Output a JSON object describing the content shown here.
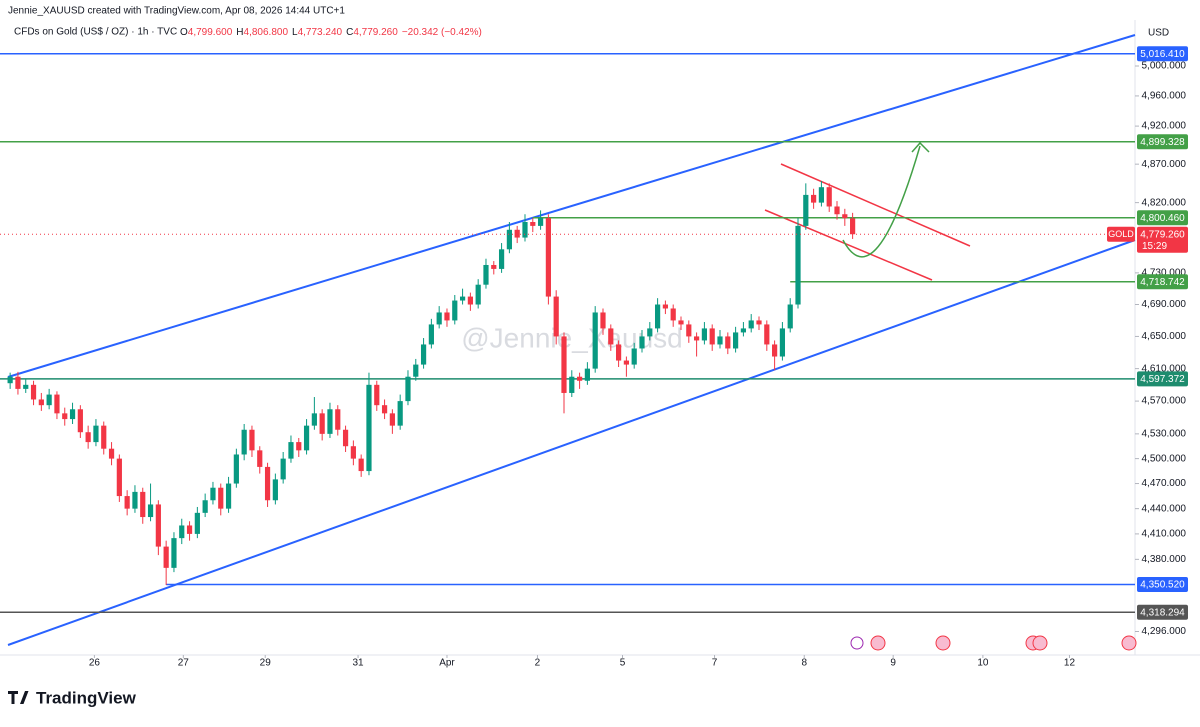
{
  "chart_data": {
    "type": "candlestick",
    "header": "Jennie_XAUUSD created with TradingView.com, Apr 08, 2026 14:44 UTC+1",
    "title": "CFDs on Gold (US$ / OZ) · 1h · TVC",
    "ohlc_legend": [
      {
        "label": "O",
        "text": "4,799.600"
      },
      {
        "label": "H",
        "text": "4,806.800"
      },
      {
        "label": "L",
        "text": "4,773.240"
      },
      {
        "label": "C",
        "text": "4,779.260"
      }
    ],
    "change": "−20.342 (−0.42%)",
    "y_unit": "USD",
    "watermark": "@Jennie_Xauusd",
    "brand": "TradingView",
    "symbol": "GOLD",
    "countdown": "15:29",
    "log_scale": true,
    "grid": false,
    "up_color": "#089981",
    "down_color": "#f23645",
    "ylim": [
      4269,
      5035
    ],
    "yticks": [
      {
        "value": 5000,
        "label": "5,000.000"
      },
      {
        "value": 4960,
        "label": "4,960.000"
      },
      {
        "value": 4920,
        "label": "4,920.000"
      },
      {
        "value": 4870,
        "label": "4,870.000"
      },
      {
        "value": 4820,
        "label": "4,820.000"
      },
      {
        "value": 4730,
        "label": "4,730.000"
      },
      {
        "value": 4690,
        "label": "4,690.000"
      },
      {
        "value": 4650,
        "label": "4,650.000"
      },
      {
        "value": 4610,
        "label": "4,610.000"
      },
      {
        "value": 4570,
        "label": "4,570.000"
      },
      {
        "value": 4530,
        "label": "4,530.000"
      },
      {
        "value": 4500,
        "label": "4,500.000"
      },
      {
        "value": 4470,
        "label": "4,470.000"
      },
      {
        "value": 4440,
        "label": "4,440.000"
      },
      {
        "value": 4410,
        "label": "4,410.000"
      },
      {
        "value": 4380,
        "label": "4,380.000"
      },
      {
        "value": 4296,
        "label": "4,296.000"
      }
    ],
    "xlim": [
      -1.3,
      144.2
    ],
    "xticks": [
      {
        "value": 10.8,
        "label": "26"
      },
      {
        "value": 22.2,
        "label": "27"
      },
      {
        "value": 32.7,
        "label": "29"
      },
      {
        "value": 44.6,
        "label": "31"
      },
      {
        "value": 56,
        "label": "Apr"
      },
      {
        "value": 67.6,
        "label": "2"
      },
      {
        "value": 78.5,
        "label": "5"
      },
      {
        "value": 90.3,
        "label": "7"
      },
      {
        "value": 101.8,
        "label": "8"
      },
      {
        "value": 113.2,
        "label": "9"
      },
      {
        "value": 124.7,
        "label": "10"
      },
      {
        "value": 135.8,
        "label": "12"
      }
    ],
    "levels": [
      {
        "value": 5016.41,
        "label": "5,016.410",
        "color": "#2962ff",
        "from": -1.3
      },
      {
        "value": 4899.328,
        "label": "4,899.328",
        "color": "#43a047",
        "from": -1.3
      },
      {
        "value": 4800.46,
        "label": "4,800.460",
        "color": "#43a047",
        "from": 67
      },
      {
        "value": 4718.742,
        "label": "4,718.742",
        "color": "#43a047",
        "from": 100
      },
      {
        "value": 4597.372,
        "label": "4,597.372",
        "color": "#1e8c6e",
        "from": -1.3
      },
      {
        "value": 4350.52,
        "label": "4,350.520",
        "color": "#2962ff",
        "from": 20
      },
      {
        "value": 4318.294,
        "label": "4,318.294",
        "color": "#555555",
        "from": -1.3
      }
    ],
    "last_price": {
      "value": 4779.26,
      "label": "4,779.260"
    },
    "ohlc": [
      [
        4592,
        4605,
        4585,
        4600
      ],
      [
        4600,
        4606,
        4578,
        4585
      ],
      [
        4585,
        4597,
        4580,
        4590
      ],
      [
        4590,
        4595,
        4565,
        4572
      ],
      [
        4572,
        4580,
        4558,
        4565
      ],
      [
        4565,
        4585,
        4560,
        4578
      ],
      [
        4578,
        4582,
        4548,
        4555
      ],
      [
        4555,
        4562,
        4540,
        4548
      ],
      [
        4548,
        4568,
        4542,
        4560
      ],
      [
        4560,
        4565,
        4525,
        4532
      ],
      [
        4532,
        4540,
        4512,
        4520
      ],
      [
        4520,
        4548,
        4515,
        4540
      ],
      [
        4540,
        4545,
        4505,
        4512
      ],
      [
        4512,
        4520,
        4492,
        4500
      ],
      [
        4500,
        4505,
        4448,
        4455
      ],
      [
        4455,
        4462,
        4432,
        4440
      ],
      [
        4440,
        4468,
        4435,
        4460
      ],
      [
        4460,
        4465,
        4422,
        4430
      ],
      [
        4430,
        4470,
        4425,
        4445
      ],
      [
        4445,
        4450,
        4385,
        4395
      ],
      [
        4395,
        4402,
        4350,
        4370
      ],
      [
        4370,
        4412,
        4365,
        4405
      ],
      [
        4405,
        4428,
        4398,
        4420
      ],
      [
        4420,
        4425,
        4402,
        4410
      ],
      [
        4410,
        4442,
        4405,
        4435
      ],
      [
        4435,
        4458,
        4430,
        4450
      ],
      [
        4450,
        4472,
        4445,
        4465
      ],
      [
        4465,
        4470,
        4432,
        4440
      ],
      [
        4440,
        4478,
        4435,
        4470
      ],
      [
        4470,
        4512,
        4465,
        4505
      ],
      [
        4505,
        4542,
        4498,
        4535
      ],
      [
        4535,
        4540,
        4502,
        4510
      ],
      [
        4510,
        4515,
        4482,
        4490
      ],
      [
        4490,
        4495,
        4442,
        4450
      ],
      [
        4450,
        4482,
        4445,
        4475
      ],
      [
        4475,
        4508,
        4470,
        4500
      ],
      [
        4500,
        4528,
        4495,
        4520
      ],
      [
        4520,
        4525,
        4502,
        4510
      ],
      [
        4510,
        4548,
        4505,
        4540
      ],
      [
        4540,
        4575,
        4535,
        4555
      ],
      [
        4555,
        4560,
        4522,
        4530
      ],
      [
        4530,
        4568,
        4525,
        4560
      ],
      [
        4560,
        4565,
        4528,
        4535
      ],
      [
        4535,
        4540,
        4508,
        4515
      ],
      [
        4515,
        4522,
        4492,
        4500
      ],
      [
        4500,
        4505,
        4478,
        4485
      ],
      [
        4485,
        4605,
        4480,
        4590
      ],
      [
        4590,
        4595,
        4558,
        4565
      ],
      [
        4565,
        4572,
        4548,
        4555
      ],
      [
        4555,
        4560,
        4530,
        4540
      ],
      [
        4540,
        4578,
        4535,
        4570
      ],
      [
        4570,
        4608,
        4565,
        4600
      ],
      [
        4600,
        4622,
        4595,
        4615
      ],
      [
        4615,
        4648,
        4610,
        4640
      ],
      [
        4640,
        4672,
        4635,
        4665
      ],
      [
        4665,
        4688,
        4660,
        4680
      ],
      [
        4680,
        4685,
        4662,
        4670
      ],
      [
        4670,
        4702,
        4665,
        4695
      ],
      [
        4695,
        4710,
        4690,
        4700
      ],
      [
        4700,
        4705,
        4682,
        4690
      ],
      [
        4690,
        4722,
        4685,
        4715
      ],
      [
        4715,
        4748,
        4710,
        4740
      ],
      [
        4740,
        4745,
        4728,
        4735
      ],
      [
        4735,
        4768,
        4730,
        4760
      ],
      [
        4760,
        4795,
        4755,
        4785
      ],
      [
        4785,
        4790,
        4768,
        4775
      ],
      [
        4775,
        4805,
        4770,
        4795
      ],
      [
        4795,
        4800,
        4782,
        4790
      ],
      [
        4790,
        4810,
        4785,
        4800
      ],
      [
        4800,
        4805,
        4690,
        4700
      ],
      [
        4700,
        4708,
        4640,
        4650
      ],
      [
        4650,
        4655,
        4555,
        4580
      ],
      [
        4580,
        4608,
        4575,
        4600
      ],
      [
        4600,
        4605,
        4585,
        4595
      ],
      [
        4595,
        4618,
        4590,
        4610
      ],
      [
        4610,
        4688,
        4605,
        4680
      ],
      [
        4680,
        4685,
        4652,
        4660
      ],
      [
        4660,
        4665,
        4632,
        4640
      ],
      [
        4640,
        4645,
        4612,
        4620
      ],
      [
        4620,
        4625,
        4600,
        4615
      ],
      [
        4615,
        4642,
        4610,
        4635
      ],
      [
        4635,
        4658,
        4630,
        4650
      ],
      [
        4650,
        4668,
        4645,
        4660
      ],
      [
        4660,
        4698,
        4655,
        4690
      ],
      [
        4690,
        4695,
        4678,
        4685
      ],
      [
        4685,
        4690,
        4662,
        4670
      ],
      [
        4670,
        4675,
        4658,
        4665
      ],
      [
        4665,
        4670,
        4642,
        4650
      ],
      [
        4650,
        4655,
        4625,
        4645
      ],
      [
        4645,
        4668,
        4640,
        4660
      ],
      [
        4660,
        4665,
        4632,
        4640
      ],
      [
        4640,
        4658,
        4635,
        4650
      ],
      [
        4650,
        4655,
        4628,
        4635
      ],
      [
        4635,
        4662,
        4630,
        4655
      ],
      [
        4655,
        4668,
        4650,
        4660
      ],
      [
        4660,
        4678,
        4655,
        4670
      ],
      [
        4670,
        4675,
        4658,
        4665
      ],
      [
        4665,
        4670,
        4632,
        4640
      ],
      [
        4640,
        4645,
        4608,
        4625
      ],
      [
        4625,
        4668,
        4620,
        4660
      ],
      [
        4660,
        4698,
        4655,
        4690
      ],
      [
        4690,
        4800,
        4685,
        4790
      ],
      [
        4790,
        4845,
        4785,
        4830
      ],
      [
        4830,
        4838,
        4812,
        4820
      ],
      [
        4820,
        4848,
        4815,
        4840
      ],
      [
        4840,
        4845,
        4808,
        4815
      ],
      [
        4815,
        4822,
        4798,
        4805
      ],
      [
        4805,
        4812,
        4790,
        4800
      ],
      [
        4799.6,
        4806.8,
        4773.24,
        4779.26
      ]
    ]
  }
}
